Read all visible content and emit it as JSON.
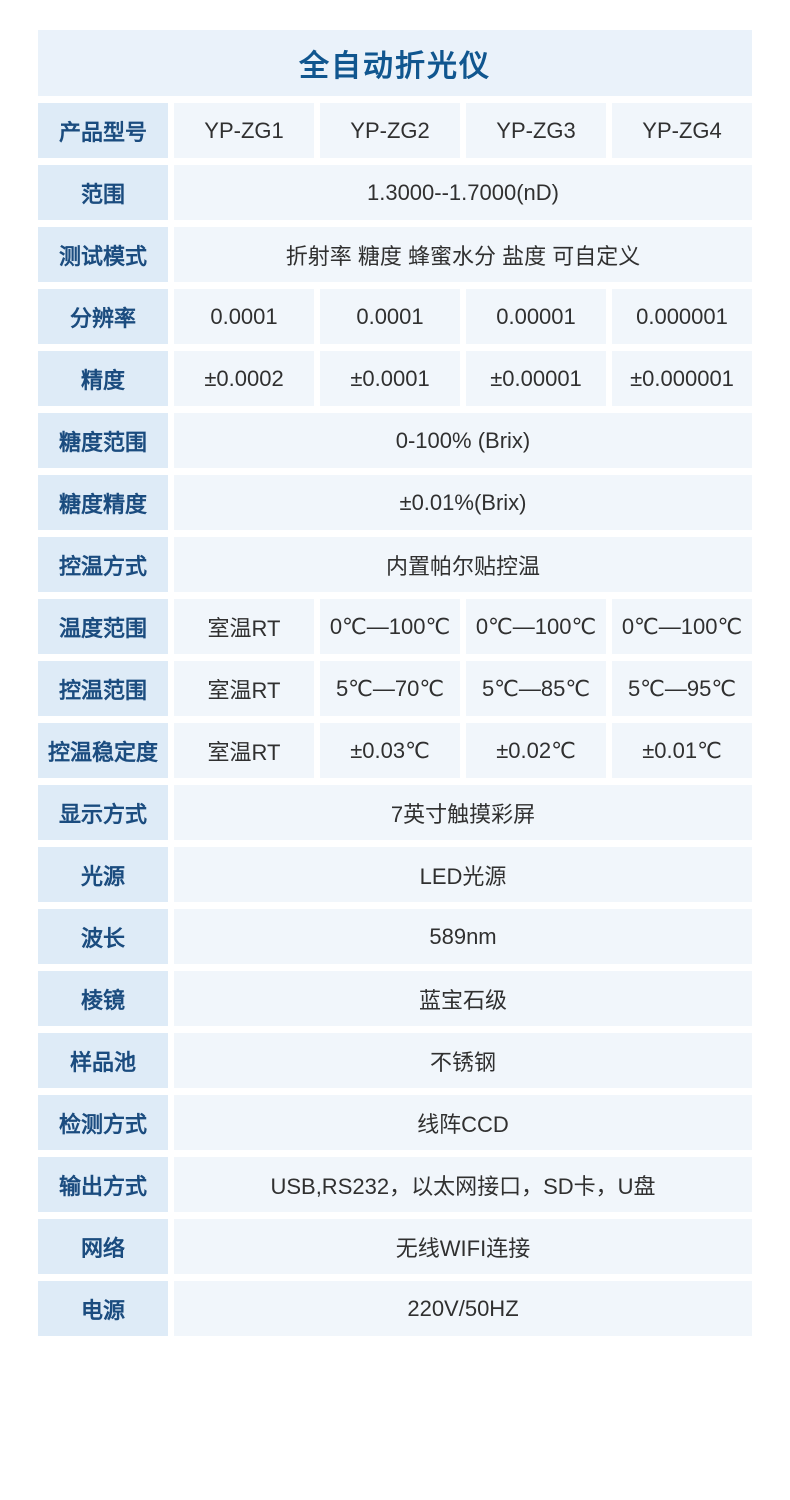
{
  "colors": {
    "title_bg": "#EAF2FA",
    "label_bg": "#DEEBF7",
    "value_cell_bg": "#F1F6FB",
    "title_text": "#10568F",
    "label_text": "#1B4C7F",
    "value_text": "#303030",
    "gap": "#FFFFFF"
  },
  "table": {
    "title": "全自动折光仪",
    "rows": [
      {
        "label": "产品型号",
        "cells": [
          "YP-ZG1",
          "YP-ZG2",
          "YP-ZG3",
          "YP-ZG4"
        ]
      },
      {
        "label": "范围",
        "merged": true,
        "cells": [
          "1.3000--1.7000(nD)"
        ]
      },
      {
        "label": "测试模式",
        "merged": true,
        "cells": [
          "折射率 糖度 蜂蜜水分 盐度 可自定义"
        ]
      },
      {
        "label": "分辨率",
        "cells": [
          "0.0001",
          "0.0001",
          "0.00001",
          "0.000001"
        ]
      },
      {
        "label": "精度",
        "cells": [
          "±0.0002",
          "±0.0001",
          "±0.00001",
          "±0.000001"
        ]
      },
      {
        "label": "糖度范围",
        "merged": true,
        "cells": [
          "0-100% (Brix)"
        ]
      },
      {
        "label": "糖度精度",
        "merged": true,
        "cells": [
          "±0.01%(Brix)"
        ]
      },
      {
        "label": "控温方式",
        "merged": true,
        "cells": [
          "内置帕尔贴控温"
        ]
      },
      {
        "label": "温度范围",
        "cells": [
          "室温RT",
          "0℃—100℃",
          "0℃—100℃",
          "0℃—100℃"
        ]
      },
      {
        "label": "控温范围",
        "cells": [
          "室温RT",
          "5℃—70℃",
          "5℃—85℃",
          "5℃—95℃"
        ]
      },
      {
        "label": "控温稳定度",
        "cells": [
          "室温RT",
          "±0.03℃",
          "±0.02℃",
          "±0.01℃"
        ]
      },
      {
        "label": "显示方式",
        "merged": true,
        "cells": [
          "7英寸触摸彩屏"
        ]
      },
      {
        "label": "光源",
        "merged": true,
        "cells": [
          "LED光源"
        ]
      },
      {
        "label": "波长",
        "merged": true,
        "cells": [
          "589nm"
        ]
      },
      {
        "label": "棱镜",
        "merged": true,
        "cells": [
          "蓝宝石级"
        ]
      },
      {
        "label": "样品池",
        "merged": true,
        "cells": [
          "不锈钢"
        ]
      },
      {
        "label": "检测方式",
        "merged": true,
        "cells": [
          "线阵CCD"
        ]
      },
      {
        "label": "输出方式",
        "merged": true,
        "cells": [
          "USB,RS232，以太网接口，SD卡，U盘"
        ]
      },
      {
        "label": "网络",
        "merged": true,
        "cells": [
          "无线WIFI连接"
        ]
      },
      {
        "label": "电源",
        "merged": true,
        "cells": [
          "220V/50HZ"
        ]
      }
    ]
  }
}
